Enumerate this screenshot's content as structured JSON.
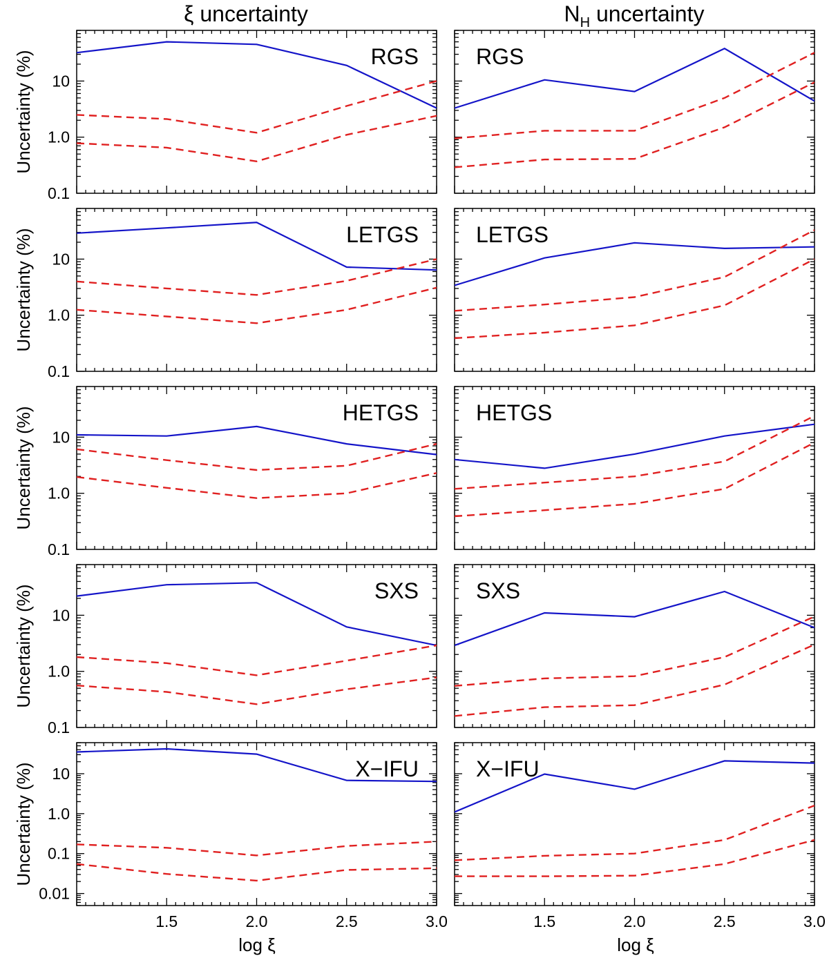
{
  "figure": {
    "columns": [
      {
        "title_parts": [
          "ξ uncertainty"
        ],
        "title_prefix": "ξ uncertainty",
        "title_sub": ""
      },
      {
        "title_prefix": "N",
        "title_sub": "H",
        "title_suffix": " uncertainty"
      }
    ],
    "ylabel": "Uncertainty (%)",
    "xlabel": "log ξ",
    "x_ticks": [
      "1.5",
      "2.0",
      "2.5",
      "3.0"
    ],
    "colors": {
      "solid": "#1414c8",
      "dashed": "#e02020",
      "axis": "#000000"
    }
  },
  "chart_data": [
    {
      "type": "line",
      "panel": "RGS xi",
      "instrument": "RGS",
      "column": 0,
      "row": 0,
      "yscale": "log",
      "ylim": [
        0.1,
        80
      ],
      "xlim": [
        1.0,
        3.0
      ],
      "y_ticks": [
        "10",
        "1.0",
        "0.1"
      ],
      "y_tick_values": [
        10,
        1,
        0.1
      ],
      "x": [
        1.0,
        1.5,
        2.0,
        2.5,
        3.0
      ],
      "series": [
        {
          "style": "solid",
          "values": [
            32,
            50,
            45,
            19,
            3.3
          ]
        },
        {
          "style": "dashed",
          "values": [
            2.5,
            2.1,
            1.2,
            3.6,
            10
          ]
        },
        {
          "style": "dashed",
          "values": [
            0.78,
            0.65,
            0.37,
            1.1,
            2.4
          ]
        }
      ]
    },
    {
      "type": "line",
      "panel": "RGS NH",
      "instrument": "RGS",
      "column": 1,
      "row": 0,
      "yscale": "log",
      "ylim": [
        0.1,
        80
      ],
      "xlim": [
        1.0,
        3.0
      ],
      "y_ticks": [],
      "y_tick_values": [
        10,
        1,
        0.1
      ],
      "x": [
        1.0,
        1.5,
        2.0,
        2.5,
        3.0
      ],
      "series": [
        {
          "style": "solid",
          "values": [
            3.3,
            10.5,
            6.5,
            38,
            4.4
          ]
        },
        {
          "style": "dashed",
          "values": [
            0.95,
            1.3,
            1.3,
            5.0,
            32
          ]
        },
        {
          "style": "dashed",
          "values": [
            0.29,
            0.4,
            0.41,
            1.5,
            9.5
          ]
        }
      ]
    },
    {
      "type": "line",
      "panel": "LETGS xi",
      "instrument": "LETGS",
      "column": 0,
      "row": 1,
      "yscale": "log",
      "ylim": [
        0.1,
        80
      ],
      "xlim": [
        1.0,
        3.0
      ],
      "y_ticks": [
        "10",
        "1.0",
        "0.1"
      ],
      "y_tick_values": [
        10,
        1,
        0.1
      ],
      "x": [
        1.0,
        1.5,
        2.0,
        2.5,
        3.0
      ],
      "series": [
        {
          "style": "solid",
          "values": [
            29,
            36,
            45,
            7.2,
            6.4
          ]
        },
        {
          "style": "dashed",
          "values": [
            4.0,
            3.0,
            2.3,
            4.1,
            10
          ]
        },
        {
          "style": "dashed",
          "values": [
            1.25,
            0.95,
            0.72,
            1.25,
            3.1
          ]
        }
      ]
    },
    {
      "type": "line",
      "panel": "LETGS NH",
      "instrument": "LETGS",
      "column": 1,
      "row": 1,
      "yscale": "log",
      "ylim": [
        0.1,
        80
      ],
      "xlim": [
        1.0,
        3.0
      ],
      "y_ticks": [],
      "y_tick_values": [
        10,
        1,
        0.1
      ],
      "x": [
        1.0,
        1.5,
        2.0,
        2.5,
        3.0
      ],
      "series": [
        {
          "style": "solid",
          "values": [
            3.4,
            10.5,
            19.5,
            15.5,
            16.5
          ]
        },
        {
          "style": "dashed",
          "values": [
            1.2,
            1.55,
            2.1,
            4.8,
            33
          ]
        },
        {
          "style": "dashed",
          "values": [
            0.39,
            0.49,
            0.66,
            1.5,
            10
          ]
        }
      ]
    },
    {
      "type": "line",
      "panel": "HETGS xi",
      "instrument": "HETGS",
      "column": 0,
      "row": 2,
      "yscale": "log",
      "ylim": [
        0.1,
        80
      ],
      "xlim": [
        1.0,
        3.0
      ],
      "y_ticks": [
        "10",
        "1.0",
        "0.1"
      ],
      "y_tick_values": [
        10,
        1,
        0.1
      ],
      "x": [
        1.0,
        1.5,
        2.0,
        2.5,
        3.0
      ],
      "series": [
        {
          "style": "solid",
          "values": [
            11,
            10.5,
            15.5,
            7.6,
            4.9
          ]
        },
        {
          "style": "dashed",
          "values": [
            6.1,
            3.9,
            2.6,
            3.1,
            7.6
          ]
        },
        {
          "style": "dashed",
          "values": [
            1.95,
            1.25,
            0.82,
            1.0,
            2.3
          ]
        }
      ]
    },
    {
      "type": "line",
      "panel": "HETGS NH",
      "instrument": "HETGS",
      "column": 1,
      "row": 2,
      "yscale": "log",
      "ylim": [
        0.1,
        80
      ],
      "xlim": [
        1.0,
        3.0
      ],
      "y_ticks": [],
      "y_tick_values": [
        10,
        1,
        0.1
      ],
      "x": [
        1.0,
        1.5,
        2.0,
        2.5,
        3.0
      ],
      "series": [
        {
          "style": "solid",
          "values": [
            4.0,
            2.8,
            5.0,
            10.5,
            17
          ]
        },
        {
          "style": "dashed",
          "values": [
            1.2,
            1.55,
            2.0,
            3.7,
            24
          ]
        },
        {
          "style": "dashed",
          "values": [
            0.39,
            0.5,
            0.65,
            1.2,
            8.0
          ]
        }
      ]
    },
    {
      "type": "line",
      "panel": "SXS xi",
      "instrument": "SXS",
      "column": 0,
      "row": 3,
      "yscale": "log",
      "ylim": [
        0.1,
        80
      ],
      "xlim": [
        1.0,
        3.0
      ],
      "y_ticks": [
        "10",
        "1.0",
        "0.1"
      ],
      "y_tick_values": [
        10,
        1,
        0.1
      ],
      "x": [
        1.0,
        1.5,
        2.0,
        2.5,
        3.0
      ],
      "series": [
        {
          "style": "solid",
          "values": [
            22,
            35,
            38,
            6.2,
            2.9
          ]
        },
        {
          "style": "dashed",
          "values": [
            1.8,
            1.4,
            0.85,
            1.55,
            2.9
          ]
        },
        {
          "style": "dashed",
          "values": [
            0.56,
            0.43,
            0.26,
            0.48,
            0.78
          ]
        }
      ]
    },
    {
      "type": "line",
      "panel": "SXS NH",
      "instrument": "SXS",
      "column": 1,
      "row": 3,
      "yscale": "log",
      "ylim": [
        0.1,
        80
      ],
      "xlim": [
        1.0,
        3.0
      ],
      "y_ticks": [],
      "y_tick_values": [
        10,
        1,
        0.1
      ],
      "x": [
        1.0,
        1.5,
        2.0,
        2.5,
        3.0
      ],
      "series": [
        {
          "style": "solid",
          "values": [
            2.9,
            11,
            9.4,
            26.5,
            6.0
          ]
        },
        {
          "style": "dashed",
          "values": [
            0.55,
            0.75,
            0.82,
            1.8,
            9.5
          ]
        },
        {
          "style": "dashed",
          "values": [
            0.16,
            0.23,
            0.25,
            0.58,
            3.0
          ]
        }
      ]
    },
    {
      "type": "line",
      "panel": "X-IFU xi",
      "instrument": "X−IFU",
      "column": 0,
      "row": 4,
      "yscale": "log",
      "ylim": [
        0.005,
        60
      ],
      "xlim": [
        1.0,
        3.0
      ],
      "y_ticks": [
        "10",
        "1.0",
        "0.1",
        "0.01"
      ],
      "y_tick_values": [
        10,
        1,
        0.1,
        0.01
      ],
      "x": [
        1.0,
        1.5,
        2.0,
        2.5,
        3.0
      ],
      "series": [
        {
          "style": "solid",
          "values": [
            35,
            42,
            31,
            6.8,
            6.4
          ]
        },
        {
          "style": "dashed",
          "values": [
            0.17,
            0.14,
            0.09,
            0.155,
            0.2
          ]
        },
        {
          "style": "dashed",
          "values": [
            0.055,
            0.031,
            0.021,
            0.039,
            0.043
          ]
        }
      ]
    },
    {
      "type": "line",
      "panel": "X-IFU NH",
      "instrument": "X−IFU",
      "column": 1,
      "row": 4,
      "yscale": "log",
      "ylim": [
        0.005,
        60
      ],
      "xlim": [
        1.0,
        3.0
      ],
      "y_ticks": [],
      "y_tick_values": [
        10,
        1,
        0.1,
        0.01
      ],
      "x": [
        1.0,
        1.5,
        2.0,
        2.5,
        3.0
      ],
      "series": [
        {
          "style": "solid",
          "values": [
            1.1,
            9.8,
            4.1,
            21,
            18.5
          ]
        },
        {
          "style": "dashed",
          "values": [
            0.068,
            0.088,
            0.1,
            0.22,
            1.6
          ]
        },
        {
          "style": "dashed",
          "values": [
            0.027,
            0.027,
            0.028,
            0.055,
            0.22
          ]
        }
      ]
    }
  ]
}
